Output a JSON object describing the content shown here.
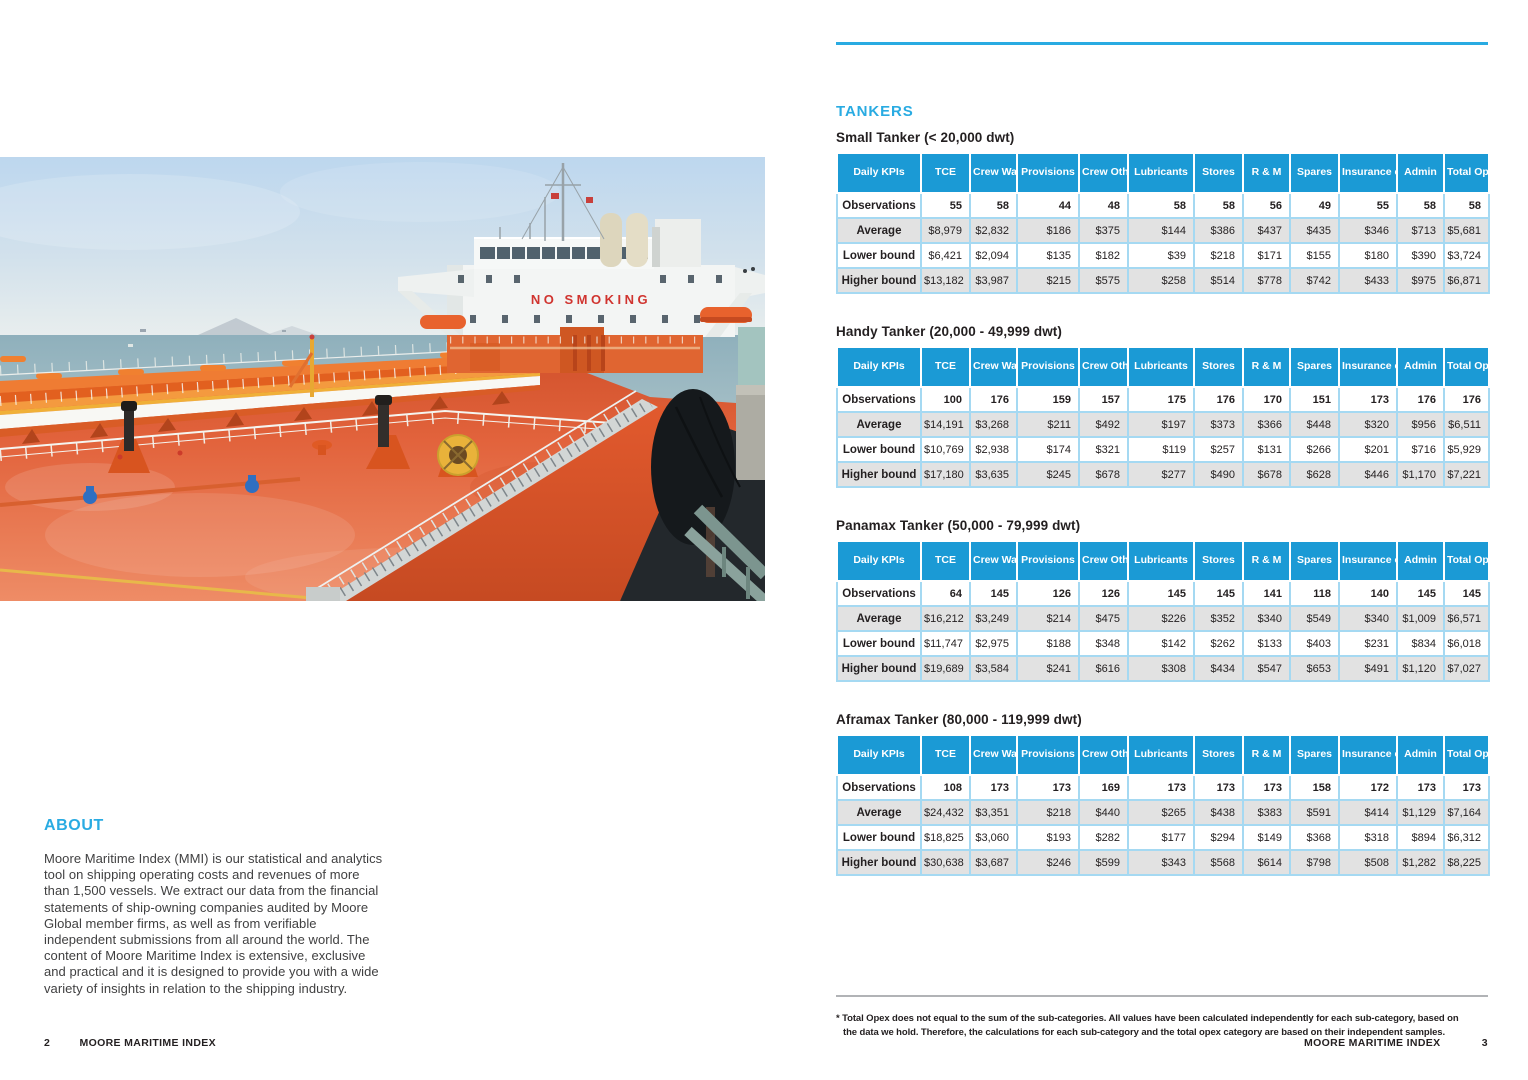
{
  "colors": {
    "accent_blue": "#29abe2",
    "table_header_blue": "#1b9ad5",
    "table_border_blue": "#a5d9f2",
    "row_alt_gray": "#e2e2e2",
    "text_dark": "#231f20",
    "no_smoking_red": "#d0342f"
  },
  "left_page": {
    "photo": {
      "description": "View along the orange main deck of an oil tanker towards the white accommodation superstructure, sea on the left",
      "no_smoking_sign": "NO SMOKING"
    },
    "about": {
      "heading": "ABOUT",
      "body": "Moore Maritime Index (MMI) is our statistical and analytics tool on shipping operating costs and revenues of more than 1,500 vessels. We extract our data from the financial statements of ship-owning companies audited by Moore Global member firms, as well as from verifiable independent submissions from all around the world. The content of Moore Maritime Index is extensive, exclusive and practical and it is designed to provide you with a wide variety of insights in relation to the shipping industry."
    },
    "footer": {
      "page_number": "2",
      "label": "MOORE MARITIME INDEX"
    }
  },
  "right_page": {
    "section_heading": "TANKERS",
    "columns": [
      "Daily KPIs",
      "TCE",
      "Crew Wages",
      "Provisions",
      "Crew Other",
      "Lubricants",
      "Stores",
      "R & M",
      "Spares",
      "Insurance costs",
      "Admin",
      "Total Opex*"
    ],
    "tables": [
      {
        "title": "Small Tanker (< 20,000 dwt)",
        "rows": [
          {
            "label": "Observations",
            "values": [
              "55",
              "58",
              "44",
              "48",
              "58",
              "58",
              "56",
              "49",
              "55",
              "58",
              "58"
            ]
          },
          {
            "label": "Average",
            "values": [
              "$8,979",
              "$2,832",
              "$186",
              "$375",
              "$144",
              "$386",
              "$437",
              "$435",
              "$346",
              "$713",
              "$5,681"
            ]
          },
          {
            "label": "Lower bound",
            "values": [
              "$6,421",
              "$2,094",
              "$135",
              "$182",
              "$39",
              "$218",
              "$171",
              "$155",
              "$180",
              "$390",
              "$3,724"
            ]
          },
          {
            "label": "Higher bound",
            "values": [
              "$13,182",
              "$3,987",
              "$215",
              "$575",
              "$258",
              "$514",
              "$778",
              "$742",
              "$433",
              "$975",
              "$6,871"
            ]
          }
        ]
      },
      {
        "title": "Handy Tanker (20,000 - 49,999 dwt)",
        "rows": [
          {
            "label": "Observations",
            "values": [
              "100",
              "176",
              "159",
              "157",
              "175",
              "176",
              "170",
              "151",
              "173",
              "176",
              "176"
            ]
          },
          {
            "label": "Average",
            "values": [
              "$14,191",
              "$3,268",
              "$211",
              "$492",
              "$197",
              "$373",
              "$366",
              "$448",
              "$320",
              "$956",
              "$6,511"
            ]
          },
          {
            "label": "Lower bound",
            "values": [
              "$10,769",
              "$2,938",
              "$174",
              "$321",
              "$119",
              "$257",
              "$131",
              "$266",
              "$201",
              "$716",
              "$5,929"
            ]
          },
          {
            "label": "Higher bound",
            "values": [
              "$17,180",
              "$3,635",
              "$245",
              "$678",
              "$277",
              "$490",
              "$678",
              "$628",
              "$446",
              "$1,170",
              "$7,221"
            ]
          }
        ]
      },
      {
        "title": "Panamax Tanker (50,000 - 79,999 dwt)",
        "rows": [
          {
            "label": "Observations",
            "values": [
              "64",
              "145",
              "126",
              "126",
              "145",
              "145",
              "141",
              "118",
              "140",
              "145",
              "145"
            ]
          },
          {
            "label": "Average",
            "values": [
              "$16,212",
              "$3,249",
              "$214",
              "$475",
              "$226",
              "$352",
              "$340",
              "$549",
              "$340",
              "$1,009",
              "$6,571"
            ]
          },
          {
            "label": "Lower bound",
            "values": [
              "$11,747",
              "$2,975",
              "$188",
              "$348",
              "$142",
              "$262",
              "$133",
              "$403",
              "$231",
              "$834",
              "$6,018"
            ]
          },
          {
            "label": "Higher bound",
            "values": [
              "$19,689",
              "$3,584",
              "$241",
              "$616",
              "$308",
              "$434",
              "$547",
              "$653",
              "$491",
              "$1,120",
              "$7,027"
            ]
          }
        ]
      },
      {
        "title": "Aframax Tanker (80,000 - 119,999 dwt)",
        "rows": [
          {
            "label": "Observations",
            "values": [
              "108",
              "173",
              "173",
              "169",
              "173",
              "173",
              "173",
              "158",
              "172",
              "173",
              "173"
            ]
          },
          {
            "label": "Average",
            "values": [
              "$24,432",
              "$3,351",
              "$218",
              "$440",
              "$265",
              "$438",
              "$383",
              "$591",
              "$414",
              "$1,129",
              "$7,164"
            ]
          },
          {
            "label": "Lower bound",
            "values": [
              "$18,825",
              "$3,060",
              "$193",
              "$282",
              "$177",
              "$294",
              "$149",
              "$368",
              "$318",
              "$894",
              "$6,312"
            ]
          },
          {
            "label": "Higher bound",
            "values": [
              "$30,638",
              "$3,687",
              "$246",
              "$599",
              "$343",
              "$568",
              "$614",
              "$798",
              "$508",
              "$1,282",
              "$8,225"
            ]
          }
        ]
      }
    ],
    "footnote": {
      "line1": "* Total Opex does not equal to the sum of the sub-categories. All values have been calculated independently for each sub-category, based on",
      "line2": "the data we hold. Therefore, the calculations for each sub-category and the total opex category are based on their independent samples."
    },
    "footer": {
      "label": "MOORE MARITIME INDEX",
      "page_number": "3"
    }
  }
}
